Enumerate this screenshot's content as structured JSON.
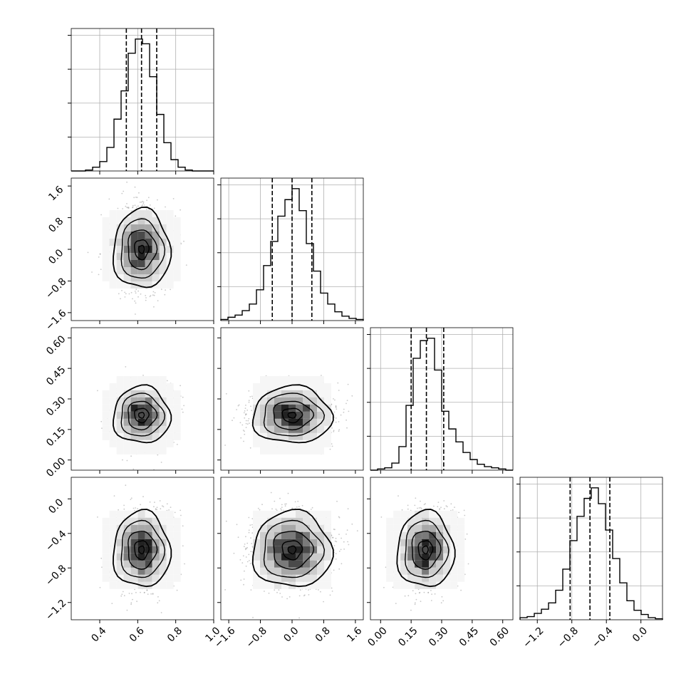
{
  "chart_data": {
    "type": "corner",
    "title": "",
    "grid": true,
    "parameters": [
      {
        "range": [
          0.25,
          1.0
        ],
        "ticks": [
          0.4,
          0.6,
          0.8,
          1.0
        ],
        "tick_labels": [
          "0.4",
          "0.6",
          "0.8",
          "1.0"
        ],
        "mean": 0.62,
        "sd": 0.075,
        "quantiles": [
          0.54,
          0.62,
          0.7
        ]
      },
      {
        "range": [
          -1.8,
          1.8
        ],
        "ticks": [
          -1.6,
          -0.8,
          0.0,
          0.8,
          1.6
        ],
        "tick_labels": [
          "−1.6",
          "−0.8",
          "0.0",
          "0.8",
          "1.6"
        ],
        "mean": 0.0,
        "sd": 0.5,
        "quantiles": [
          -0.5,
          0.0,
          0.5
        ]
      },
      {
        "range": [
          -0.05,
          0.65
        ],
        "ticks": [
          0.0,
          0.15,
          0.3,
          0.45,
          0.6
        ],
        "tick_labels": [
          "0.00",
          "0.15",
          "0.30",
          "0.45",
          "0.60"
        ],
        "mean": 0.225,
        "sd": 0.07,
        "quantiles": [
          0.15,
          0.225,
          0.31
        ]
      },
      {
        "range": [
          -1.4,
          0.25
        ],
        "ticks": [
          -1.2,
          -0.8,
          -0.4,
          0.0
        ],
        "tick_labels": [
          "−1.2",
          "−0.8",
          "−0.4",
          "0.0"
        ],
        "mean": -0.59,
        "sd": 0.22,
        "quantiles": [
          -0.82,
          -0.59,
          -0.36
        ]
      }
    ],
    "histograms": [
      {
        "param": 0,
        "bin_edges": [
          0.25,
          0.2875,
          0.325,
          0.3625,
          0.4,
          0.4375,
          0.475,
          0.5125,
          0.55,
          0.5875,
          0.625,
          0.6625,
          0.7,
          0.7375,
          0.775,
          0.8125,
          0.85,
          0.8875,
          0.925,
          0.9625,
          1.0
        ],
        "counts": [
          0,
          0,
          1,
          4,
          10,
          25,
          55,
          85,
          125,
          140,
          135,
          100,
          60,
          30,
          12,
          4,
          1,
          0,
          0,
          0
        ]
      },
      {
        "param": 1,
        "bin_edges": [
          -1.8,
          -1.62,
          -1.44,
          -1.26,
          -1.08,
          -0.9,
          -0.72,
          -0.54,
          -0.36,
          -0.18,
          0,
          0.18,
          0.36,
          0.54,
          0.72,
          0.9,
          1.08,
          1.26,
          1.44,
          1.62,
          1.8
        ],
        "counts": [
          1,
          3,
          5,
          9,
          15,
          28,
          50,
          72,
          95,
          110,
          120,
          100,
          70,
          45,
          25,
          15,
          8,
          4,
          2,
          1
        ]
      },
      {
        "param": 2,
        "bin_edges": [
          -0.05,
          -0.015,
          0.02,
          0.055,
          0.09,
          0.125,
          0.16,
          0.195,
          0.23,
          0.265,
          0.3,
          0.335,
          0.37,
          0.405,
          0.44,
          0.475,
          0.51,
          0.545,
          0.58,
          0.615,
          0.65
        ],
        "counts": [
          0,
          1,
          2,
          6,
          20,
          55,
          95,
          110,
          112,
          85,
          50,
          35,
          24,
          15,
          9,
          5,
          3,
          2,
          1,
          0
        ]
      },
      {
        "param": 3,
        "bin_edges": [
          -1.4,
          -1.3175,
          -1.235,
          -1.1525,
          -1.07,
          -0.9875,
          -0.905,
          -0.8225,
          -0.74,
          -0.6575,
          -0.575,
          -0.4925,
          -0.41,
          -0.3275,
          -0.245,
          -0.1625,
          -0.08,
          0.0025,
          0.085,
          0.1675,
          0.25
        ],
        "counts": [
          2,
          3,
          6,
          10,
          16,
          28,
          48,
          75,
          98,
          115,
          125,
          110,
          85,
          58,
          35,
          18,
          9,
          5,
          2,
          1
        ]
      }
    ],
    "pairs": [
      {
        "x": 0,
        "y": 1,
        "center": [
          0.62,
          0.0
        ]
      },
      {
        "x": 0,
        "y": 2,
        "center": [
          0.62,
          0.22
        ]
      },
      {
        "x": 1,
        "y": 2,
        "center": [
          0.0,
          0.22
        ]
      },
      {
        "x": 0,
        "y": 3,
        "center": [
          0.62,
          -0.59
        ]
      },
      {
        "x": 1,
        "y": 3,
        "center": [
          0.0,
          -0.59
        ]
      },
      {
        "x": 2,
        "y": 3,
        "center": [
          0.22,
          -0.59
        ]
      }
    ]
  }
}
